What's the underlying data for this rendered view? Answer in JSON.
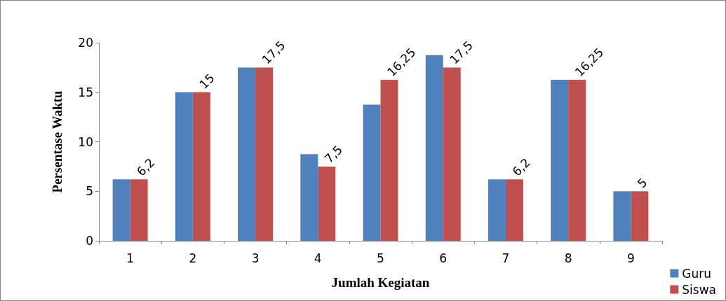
{
  "chart_data": {
    "type": "bar",
    "xlabel": "Jumlah Kegiatan",
    "ylabel": "Persentase Waktu",
    "categories": [
      "1",
      "2",
      "3",
      "4",
      "5",
      "6",
      "7",
      "8",
      "9"
    ],
    "series": [
      {
        "name": "Guru",
        "color": "#4f81bd",
        "values": [
          6.2,
          15,
          17.5,
          8.75,
          13.75,
          18.75,
          6.2,
          16.25,
          5
        ]
      },
      {
        "name": "Siswa",
        "color": "#c0504d",
        "values": [
          6.2,
          15,
          17.5,
          7.5,
          16.25,
          17.5,
          6.2,
          16.25,
          5
        ],
        "value_labels": [
          "6,2",
          "15",
          "17,5",
          "7,5",
          "16,25",
          "17,5",
          "6,2",
          "16,25",
          "5"
        ]
      }
    ],
    "ylim": [
      0,
      20
    ],
    "yticks": [
      0,
      5,
      10,
      15,
      20
    ],
    "grid": false,
    "legend": "bottom right"
  }
}
